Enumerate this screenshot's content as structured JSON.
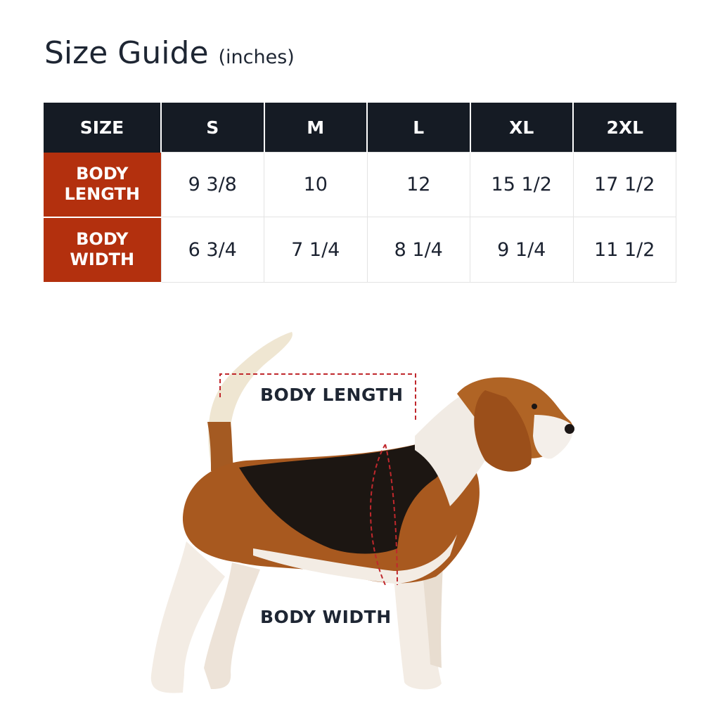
{
  "title": {
    "main": "Size Guide",
    "unit": "(inches)"
  },
  "table": {
    "header": [
      "SIZE",
      "S",
      "M",
      "L",
      "XL",
      "2XL"
    ],
    "rows": [
      {
        "label_line1": "BODY",
        "label_line2": "LENGTH",
        "values": [
          "9 3/8",
          "10",
          "12",
          "15 1/2",
          "17 1/2"
        ]
      },
      {
        "label_line1": "BODY",
        "label_line2": "WIDTH",
        "values": [
          "6 3/4",
          "7 1/4",
          "8 1/4",
          "9 1/4",
          "11 1/2"
        ]
      }
    ]
  },
  "diagram": {
    "body_length_label": "BODY LENGTH",
    "body_width_label": "BODY WIDTH"
  },
  "colors": {
    "header_bg": "#151b24",
    "row_label_bg": "#b3300e",
    "dashed_line": "#c0282d"
  }
}
